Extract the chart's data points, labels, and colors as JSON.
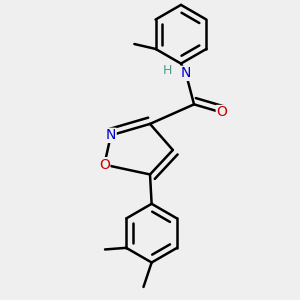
{
  "background_color": "#efefef",
  "bond_color": "#000000",
  "bond_width": 1.8,
  "atom_colors": {
    "N": "#0000cc",
    "O": "#cc0000",
    "H": "#4a9a8a",
    "C": "#000000"
  },
  "font_size_atom": 10,
  "dbo": 0.018
}
